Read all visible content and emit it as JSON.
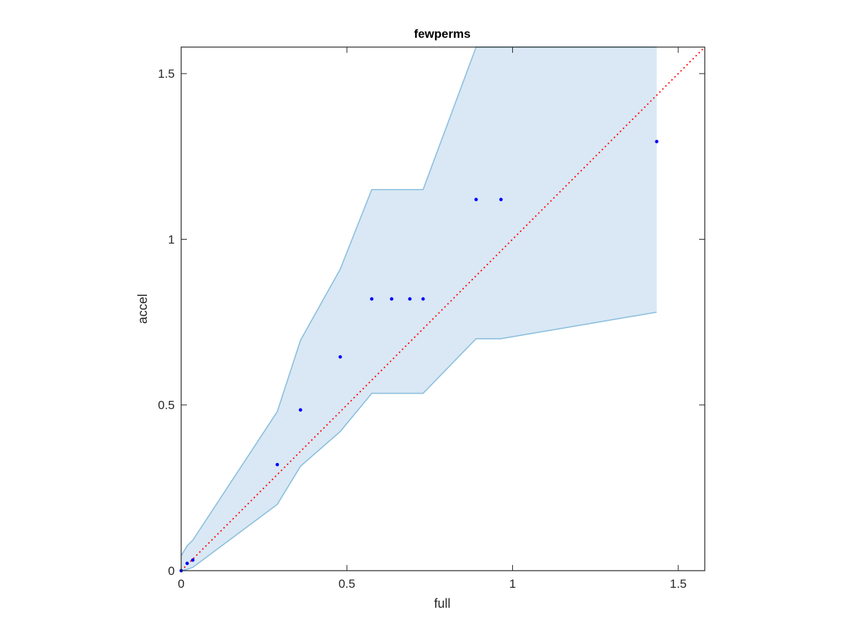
{
  "chart_data": {
    "type": "scatter",
    "title": "fewperms",
    "xlabel": "full",
    "ylabel": "accel",
    "xlim": [
      0,
      1.58
    ],
    "ylim": [
      0,
      1.58
    ],
    "xticks": [
      0,
      0.5,
      1,
      1.5
    ],
    "xtick_labels": [
      "0",
      "0.5",
      "1",
      "1.5"
    ],
    "yticks": [
      0,
      0.5,
      1,
      1.5
    ],
    "ytick_labels": [
      "0",
      "0.5",
      "1",
      "1.5"
    ],
    "grid": false,
    "legend": false,
    "colors": {
      "points": "#0000ff",
      "band_fill": "#d9e8f4",
      "band_edge": "#8bbfde",
      "reference_line": "#ff0000",
      "axes": "#262626"
    },
    "reference_line": {
      "style": "dotted",
      "from": [
        0,
        0
      ],
      "to": [
        1.58,
        1.58
      ]
    },
    "points": [
      {
        "x": 0,
        "y": 0
      },
      {
        "x": 0.018,
        "y": 0.022
      },
      {
        "x": 0.035,
        "y": 0.032
      },
      {
        "x": 0.29,
        "y": 0.32
      },
      {
        "x": 0.36,
        "y": 0.485
      },
      {
        "x": 0.48,
        "y": 0.645
      },
      {
        "x": 0.575,
        "y": 0.82
      },
      {
        "x": 0.635,
        "y": 0.82
      },
      {
        "x": 0.69,
        "y": 0.82
      },
      {
        "x": 0.73,
        "y": 0.82
      },
      {
        "x": 0.89,
        "y": 1.12
      },
      {
        "x": 0.965,
        "y": 1.12
      },
      {
        "x": 1.435,
        "y": 1.295
      }
    ],
    "band": {
      "upper": [
        [
          0,
          0.045
        ],
        [
          0.018,
          0.075
        ],
        [
          0.035,
          0.092
        ],
        [
          0.29,
          0.48
        ],
        [
          0.36,
          0.695
        ],
        [
          0.48,
          0.91
        ],
        [
          0.575,
          1.15
        ],
        [
          0.635,
          1.15
        ],
        [
          0.69,
          1.15
        ],
        [
          0.73,
          1.15
        ],
        [
          0.89,
          1.58
        ],
        [
          0.965,
          1.58
        ],
        [
          1.435,
          1.58
        ]
      ],
      "lower": [
        [
          0,
          0.0
        ],
        [
          0.018,
          0.004
        ],
        [
          0.035,
          0.01
        ],
        [
          0.29,
          0.2
        ],
        [
          0.36,
          0.315
        ],
        [
          0.48,
          0.42
        ],
        [
          0.575,
          0.535
        ],
        [
          0.635,
          0.535
        ],
        [
          0.69,
          0.535
        ],
        [
          0.73,
          0.535
        ],
        [
          0.89,
          0.7
        ],
        [
          0.965,
          0.7
        ],
        [
          1.435,
          0.78
        ]
      ]
    }
  }
}
